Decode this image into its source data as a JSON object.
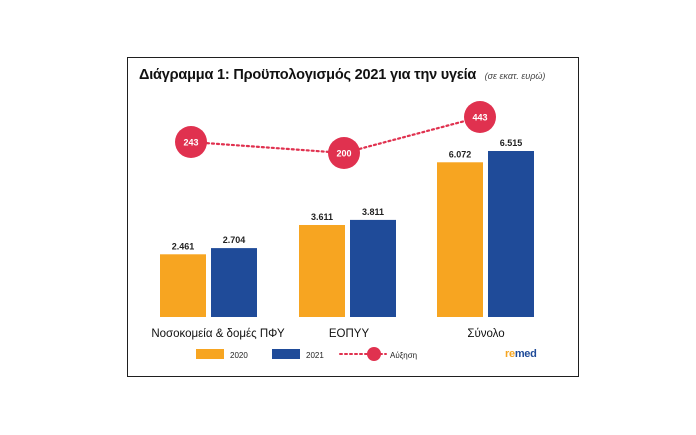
{
  "chart_data": {
    "type": "bar",
    "title": "Διάγραμμα 1: Προϋπολογισμός 2021 για την υγεία",
    "subtitle": "(σε εκατ. ευρώ)",
    "categories": [
      "Νοσοκομεία & δομές ΠΦΥ",
      "ΕΟΠΥΥ",
      "Σύνολο"
    ],
    "series": [
      {
        "name": "2020",
        "values": [
          2461,
          3611,
          6072
        ],
        "labels": [
          "2.461",
          "3.611",
          "6.072"
        ],
        "color": "#f7a521"
      },
      {
        "name": "2021",
        "values": [
          2704,
          3811,
          6515
        ],
        "labels": [
          "2.704",
          "3.811",
          "6.515"
        ],
        "color": "#1f4b99"
      }
    ],
    "increase": {
      "name": "Αύξηση",
      "values": [
        243,
        200,
        443
      ],
      "labels": [
        "243",
        "200",
        "443"
      ],
      "color": "#e0314f",
      "line_style": "dotted"
    },
    "ylim": [
      0,
      6515
    ],
    "grid": false,
    "legend": "bottom"
  },
  "logo": {
    "part1": "re",
    "part2": "med"
  }
}
